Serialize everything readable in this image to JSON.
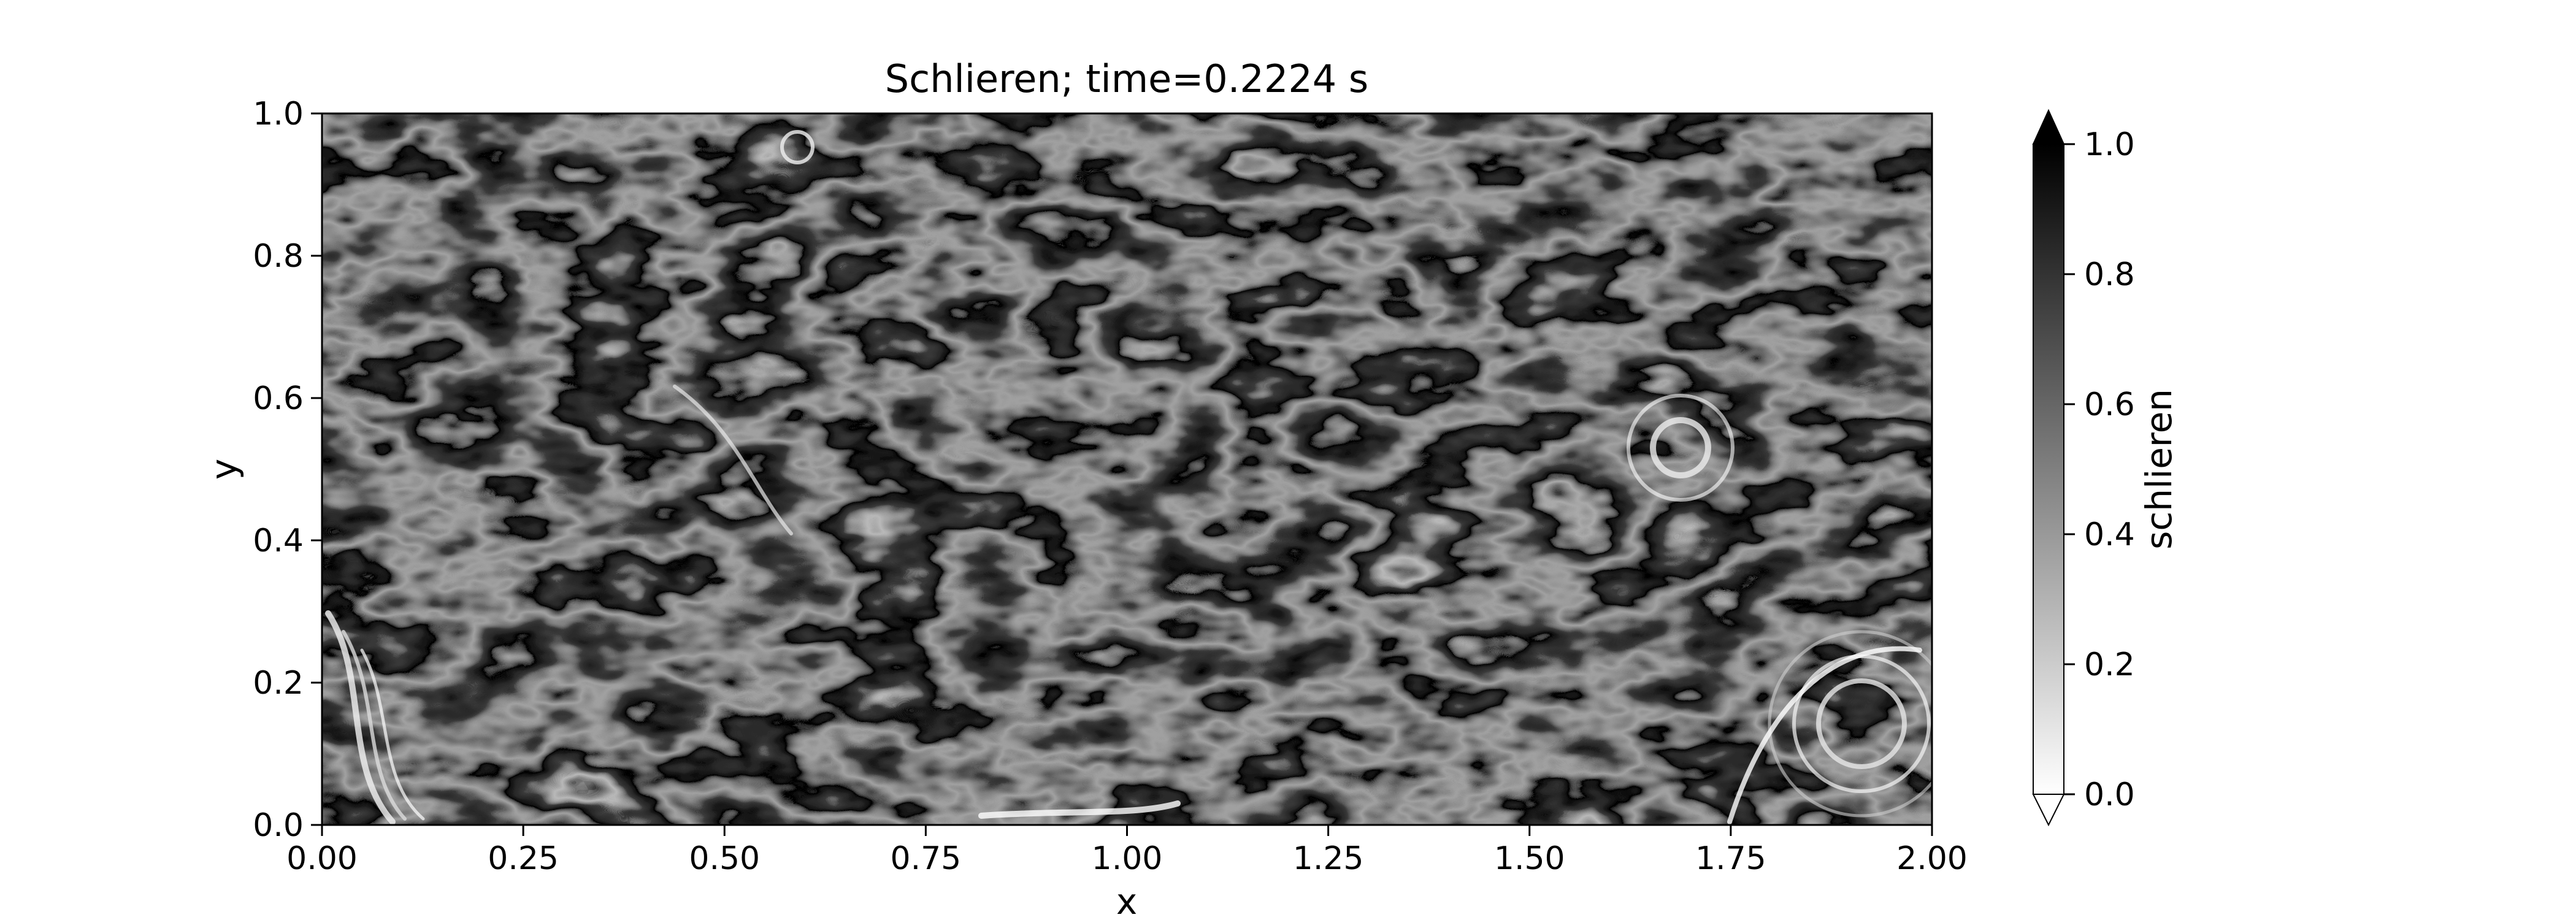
{
  "chart_data": {
    "type": "heatmap",
    "title": "Schlieren; time=0.2224 s",
    "xlabel": "x",
    "ylabel": "y",
    "xlim": [
      0.0,
      2.0
    ],
    "ylim": [
      0.0,
      1.0
    ],
    "x_ticks": [
      "0.00",
      "0.25",
      "0.50",
      "0.75",
      "1.00",
      "1.25",
      "1.50",
      "1.75",
      "2.00"
    ],
    "y_ticks": [
      "0.0",
      "0.2",
      "0.4",
      "0.6",
      "0.8",
      "1.0"
    ],
    "colormap": "gray_r",
    "colorbar": {
      "label": "schlieren",
      "range": [
        0.0,
        1.0
      ],
      "ticks": [
        "0.0",
        "0.2",
        "0.4",
        "0.6",
        "0.8",
        "1.0"
      ],
      "extend": "both",
      "low_color": "#ffffff",
      "high_color": "#000000"
    },
    "grid": false
  }
}
